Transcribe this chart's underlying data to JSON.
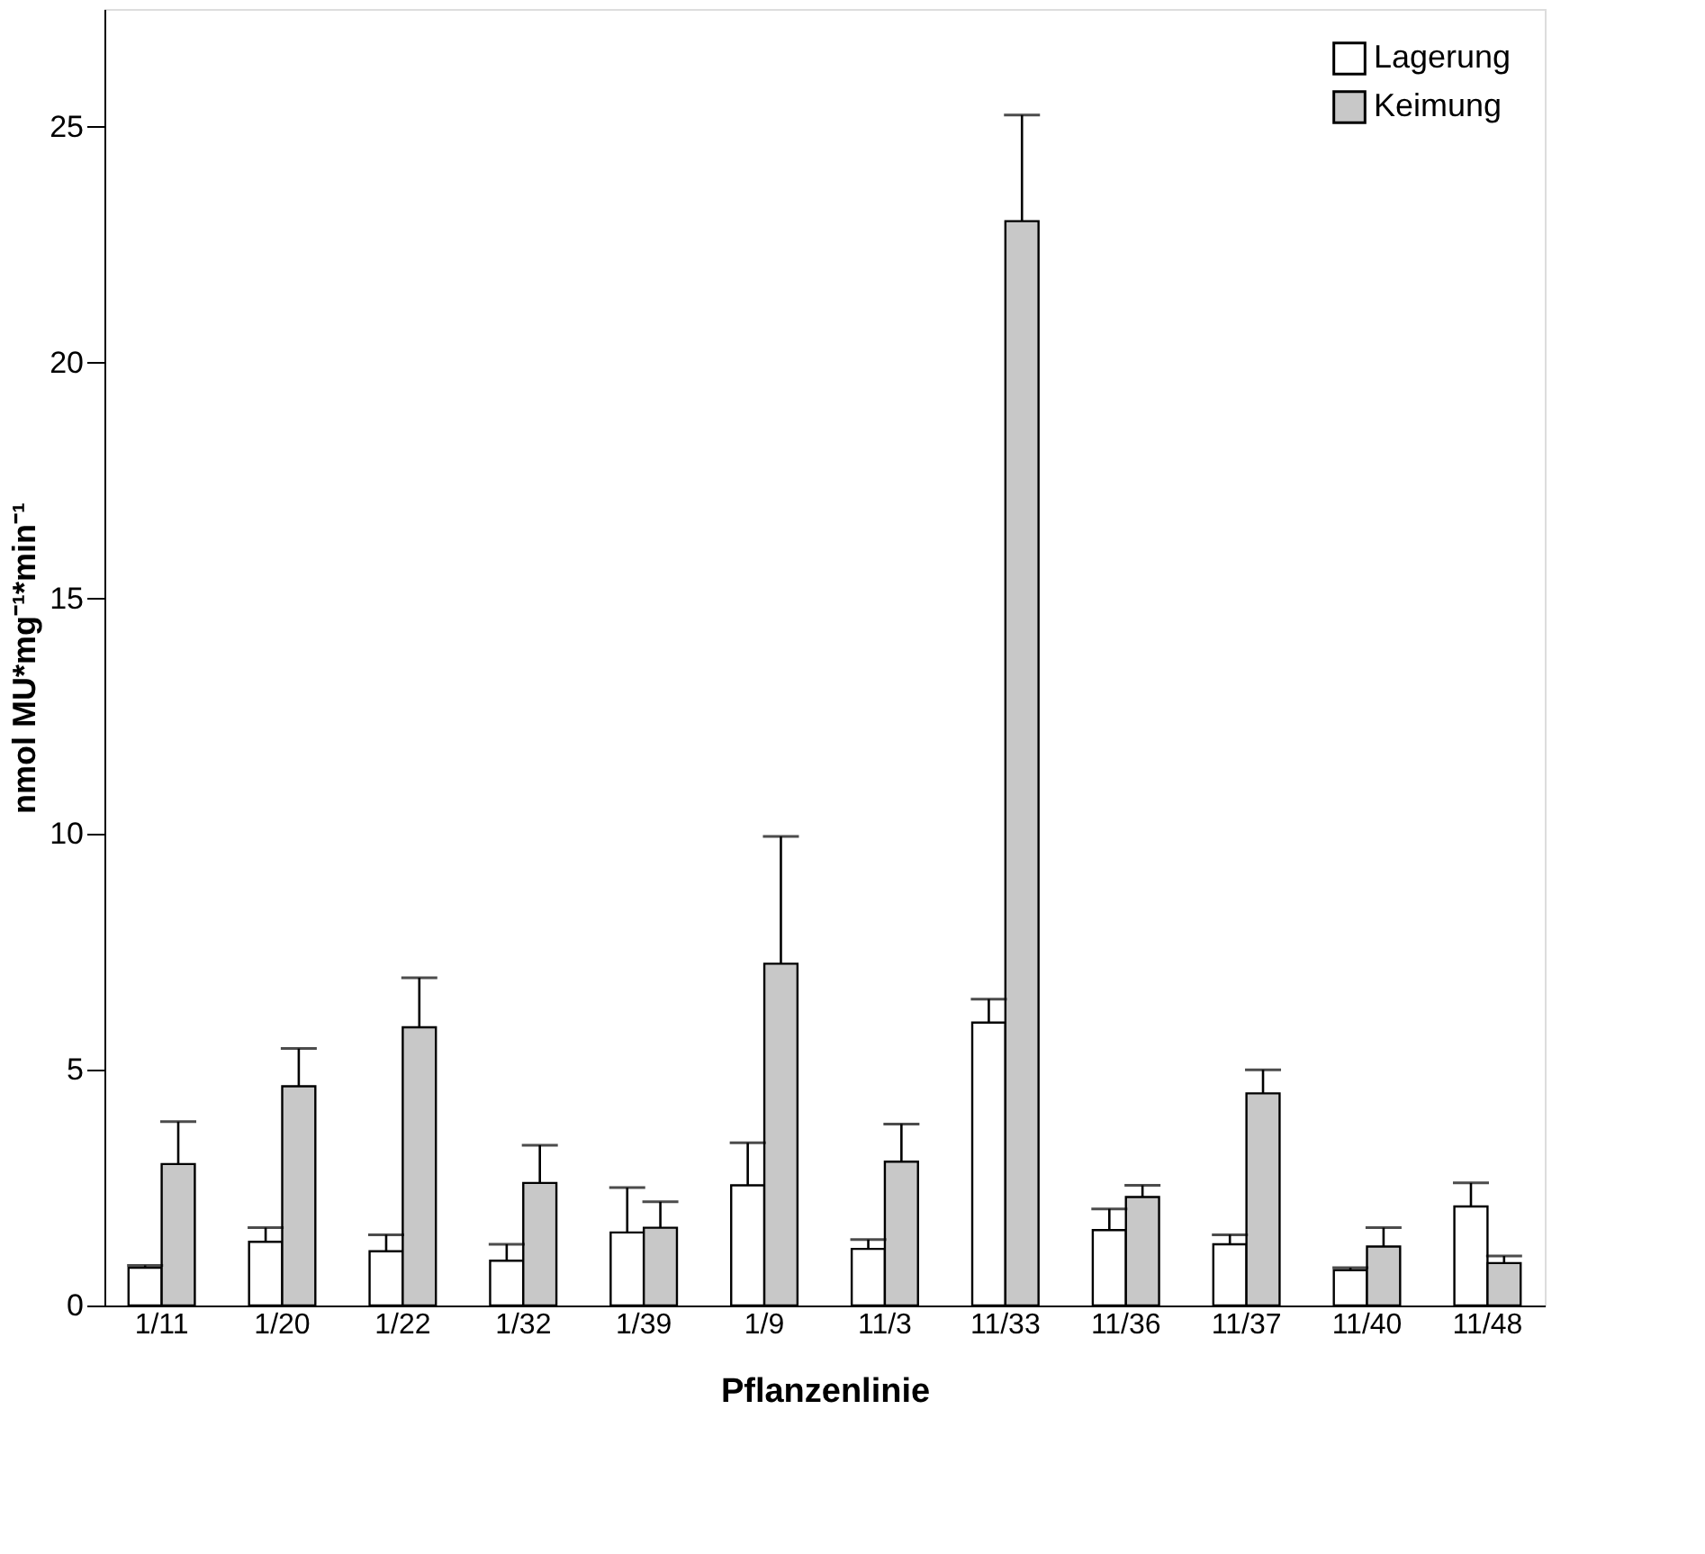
{
  "chart_data": {
    "type": "bar",
    "xlabel": "Pflanzenlinie",
    "ylabel": "nmol MU*mg⁻¹*min⁻¹",
    "categories": [
      "1/11",
      "1/20",
      "1/22",
      "1/32",
      "1/39",
      "1/9",
      "11/3",
      "11/33",
      "11/36",
      "11/37",
      "11/40",
      "11/48"
    ],
    "series": [
      {
        "name": "Lagerung",
        "color": "#ffffff",
        "values": [
          0.8,
          1.35,
          1.15,
          0.95,
          1.55,
          2.55,
          1.2,
          6.0,
          1.6,
          1.3,
          0.75,
          2.1
        ],
        "errors": [
          [
            0.8,
            0.85
          ],
          [
            1.35,
            1.65
          ],
          [
            1.15,
            1.5
          ],
          [
            0.95,
            1.3
          ],
          [
            1.55,
            2.5
          ],
          [
            2.55,
            3.45
          ],
          [
            1.2,
            1.4
          ],
          [
            6.0,
            6.5
          ],
          [
            1.6,
            2.05
          ],
          [
            1.3,
            1.5
          ],
          [
            0.75,
            0.8
          ],
          [
            2.1,
            2.6
          ]
        ]
      },
      {
        "name": "Keimung",
        "color": "#c8c8c8",
        "values": [
          3.0,
          4.65,
          5.9,
          2.6,
          1.65,
          7.25,
          3.05,
          23.0,
          2.3,
          4.5,
          1.25,
          0.9
        ],
        "errors": [
          [
            3.0,
            3.9
          ],
          [
            4.65,
            5.45
          ],
          [
            5.9,
            6.95
          ],
          [
            2.6,
            3.4
          ],
          [
            1.65,
            2.2
          ],
          [
            7.25,
            9.95
          ],
          [
            3.05,
            3.85
          ],
          [
            23.0,
            25.25
          ],
          [
            2.3,
            2.55
          ],
          [
            4.5,
            5.0
          ],
          [
            1.25,
            1.65
          ],
          [
            0.9,
            1.05
          ]
        ]
      }
    ],
    "ylim": [
      0,
      27.5
    ],
    "yticks": [
      0,
      5,
      10,
      15,
      20,
      25
    ],
    "grid": false,
    "legend": "top right"
  }
}
